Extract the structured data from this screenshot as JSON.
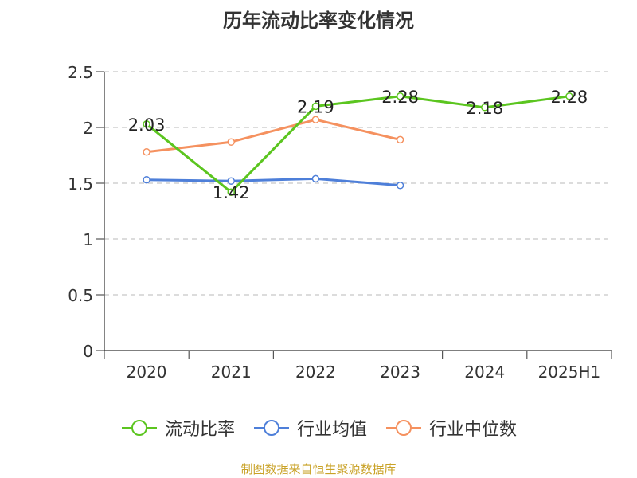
{
  "title": "历年流动比率变化情况",
  "source": "制图数据来自恒生聚源数据库",
  "chart_data": {
    "type": "line",
    "categories": [
      "2020",
      "2021",
      "2022",
      "2023",
      "2024",
      "2025H1"
    ],
    "ylim": [
      0,
      2.5
    ],
    "yticks": [
      "0",
      "0.5",
      "1",
      "1.5",
      "2",
      "2.5"
    ],
    "grid": true,
    "legend_position": "bottom",
    "series": [
      {
        "name": "流动比率",
        "color": "#5bc51f",
        "values": [
          2.03,
          1.42,
          2.19,
          2.28,
          2.18,
          2.28
        ],
        "labels": [
          "2.03",
          "1.42",
          "2.19",
          "2.28",
          "2.18",
          "2.28"
        ]
      },
      {
        "name": "行业均值",
        "color": "#4e7fd9",
        "values": [
          1.53,
          1.52,
          1.54,
          1.48,
          null,
          null
        ]
      },
      {
        "name": "行业中位数",
        "color": "#f5915f",
        "values": [
          1.78,
          1.87,
          2.07,
          1.89,
          null,
          null
        ]
      }
    ]
  }
}
